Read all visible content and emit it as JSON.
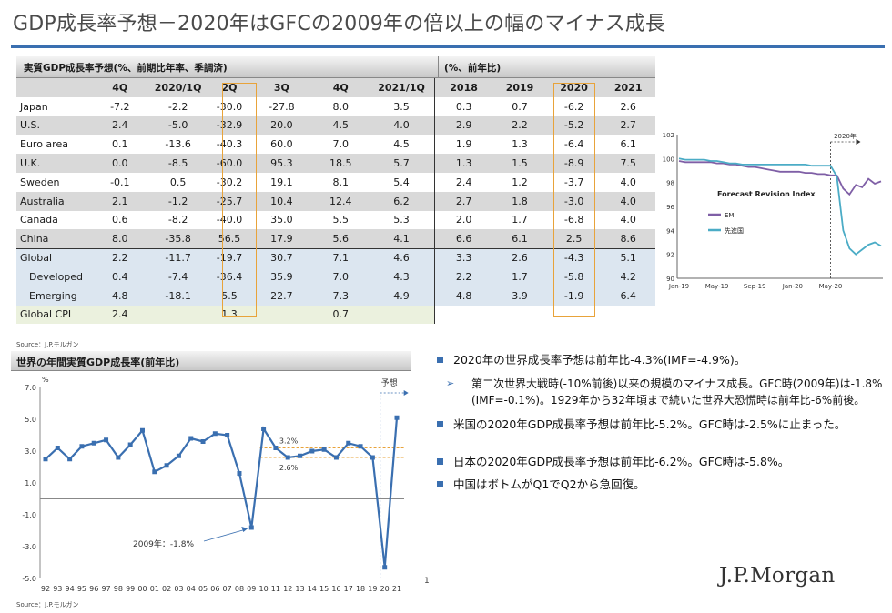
{
  "title": "GDP成長率予想－2020年はGFCの2009年の倍以上の幅のマイナス成長",
  "table": {
    "header_left": "実質GDP成長率予想(%、前期比年率、季調済)",
    "header_right": "(%、前年比)",
    "columns": [
      "4Q",
      "2020/1Q",
      "2Q",
      "3Q",
      "4Q",
      "2021/1Q",
      "2018",
      "2019",
      "2020",
      "2021"
    ],
    "rows": [
      {
        "label": "Japan",
        "values": [
          "-7.2",
          "-2.2",
          "-30.0",
          "-27.8",
          "8.0",
          "3.5",
          "0.3",
          "0.7",
          "-6.2",
          "2.6"
        ]
      },
      {
        "label": "U.S.",
        "values": [
          "2.4",
          "-5.0",
          "-32.9",
          "20.0",
          "4.5",
          "4.0",
          "2.9",
          "2.2",
          "-5.2",
          "2.7"
        ]
      },
      {
        "label": "Euro area",
        "values": [
          "0.1",
          "-13.6",
          "-40.3",
          "60.0",
          "7.0",
          "4.5",
          "1.9",
          "1.3",
          "-6.4",
          "6.1"
        ]
      },
      {
        "label": "U.K.",
        "values": [
          "0.0",
          "-8.5",
          "-60.0",
          "95.3",
          "18.5",
          "5.7",
          "1.3",
          "1.5",
          "-8.9",
          "7.5"
        ]
      },
      {
        "label": "Sweden",
        "values": [
          "-0.1",
          "0.5",
          "-30.2",
          "19.1",
          "8.1",
          "5.4",
          "2.4",
          "1.2",
          "-3.7",
          "4.0"
        ]
      },
      {
        "label": "Australia",
        "values": [
          "2.1",
          "-1.2",
          "-25.7",
          "10.4",
          "12.4",
          "6.2",
          "2.7",
          "1.8",
          "-3.0",
          "4.0"
        ]
      },
      {
        "label": "Canada",
        "values": [
          "0.6",
          "-8.2",
          "-40.0",
          "35.0",
          "5.5",
          "5.3",
          "2.0",
          "1.7",
          "-6.8",
          "4.0"
        ]
      },
      {
        "label": "China",
        "values": [
          "8.0",
          "-35.8",
          "56.5",
          "17.9",
          "5.6",
          "4.1",
          "6.6",
          "6.1",
          "2.5",
          "8.6"
        ]
      },
      {
        "label": "Global",
        "values": [
          "2.2",
          "-11.7",
          "-19.7",
          "30.7",
          "7.1",
          "4.6",
          "3.3",
          "2.6",
          "-4.3",
          "5.1"
        ]
      },
      {
        "label": "Developed",
        "values": [
          "0.4",
          "-7.4",
          "-36.4",
          "35.9",
          "7.0",
          "4.3",
          "2.2",
          "1.7",
          "-5.8",
          "4.2"
        ]
      },
      {
        "label": "Emerging",
        "values": [
          "4.8",
          "-18.1",
          "5.5",
          "22.7",
          "7.3",
          "4.9",
          "4.8",
          "3.9",
          "-1.9",
          "6.4"
        ]
      },
      {
        "label": "Global CPI",
        "values": [
          "2.4",
          "",
          "1.3",
          "",
          "0.7",
          "",
          "",
          "",
          "",
          ""
        ]
      }
    ],
    "source": "Source：J.P.モルガン"
  },
  "chart_data": [
    {
      "type": "line",
      "title": "Forecast Revision Index",
      "annotation": "2020年",
      "x_ticks": [
        "Jan-19",
        "May-19",
        "Sep-19",
        "Jan-20",
        "May-20"
      ],
      "ylim": [
        90,
        102
      ],
      "y_ticks": [
        90,
        92,
        94,
        96,
        98,
        100,
        102
      ],
      "grid": false,
      "legend": "left",
      "series": [
        {
          "name": "EM",
          "color": "#7f5fa6",
          "values": [
            99.8,
            99.7,
            99.7,
            99.7,
            99.7,
            99.7,
            99.6,
            99.6,
            99.5,
            99.5,
            99.4,
            99.3,
            99.3,
            99.2,
            99.1,
            99.0,
            98.9,
            98.9,
            98.9,
            98.9,
            98.8,
            98.8,
            98.7,
            98.7,
            98.6,
            98.6,
            97.5,
            97.0,
            97.8,
            97.6,
            98.3,
            97.9,
            98.1
          ]
        },
        {
          "name": "先進国",
          "color": "#4bacc6",
          "values": [
            100.0,
            99.9,
            99.9,
            99.9,
            99.9,
            99.8,
            99.8,
            99.7,
            99.6,
            99.6,
            99.5,
            99.5,
            99.5,
            99.5,
            99.5,
            99.5,
            99.5,
            99.5,
            99.5,
            99.5,
            99.5,
            99.4,
            99.4,
            99.4,
            99.4,
            98.5,
            94.0,
            92.5,
            92.0,
            92.4,
            92.8,
            93.0,
            92.7
          ]
        }
      ]
    },
    {
      "type": "line",
      "title": "世界の年間実質GDP成長率(前年比)",
      "ylabel": "%",
      "categories": [
        "92",
        "93",
        "94",
        "95",
        "96",
        "97",
        "98",
        "99",
        "00",
        "01",
        "02",
        "03",
        "04",
        "05",
        "06",
        "07",
        "08",
        "09",
        "10",
        "11",
        "12",
        "13",
        "14",
        "15",
        "16",
        "17",
        "18",
        "19",
        "20",
        "21"
      ],
      "values": [
        2.5,
        3.2,
        2.5,
        3.3,
        3.5,
        3.7,
        2.6,
        3.4,
        4.3,
        1.7,
        2.1,
        2.7,
        3.8,
        3.6,
        4.1,
        4.0,
        1.6,
        -1.8,
        4.4,
        3.2,
        2.6,
        2.7,
        3.0,
        3.1,
        2.6,
        3.5,
        3.3,
        2.6,
        -4.3,
        5.1
      ],
      "ylim": [
        -5.0,
        7.0
      ],
      "y_ticks": [
        "-5.0",
        "-3.0",
        "-1.0",
        "1.0",
        "3.0",
        "5.0",
        "7.0"
      ],
      "reference_lines": [
        {
          "label": "3.2%",
          "value": 3.2
        },
        {
          "label": "2.6%",
          "value": 2.6
        }
      ],
      "annotation": "2009年：-1.8%",
      "forecast_label": "予想",
      "color": "#3a6fb0"
    }
  ],
  "chart2_header": "世界の年間実質GDP成長率(前年比)",
  "chart2_source": "Source：J.P.モルガン",
  "page_number": "1",
  "bullets": {
    "b1": "2020年の世界成長率予想は前年比-4.3%(IMF=-4.9%)。",
    "b1_sub": "第二次世界大戦時(-10%前後)以来の規模のマイナス成長。GFC時(2009年)は-1.8%(IMF=-0.1%)。1929年から32年頃まで続いた世界大恐慌時は前年比-6%前後。",
    "b2": "米国の2020年GDP成長率予想は前年比-5.2%。GFC時は-2.5%に止まった。",
    "b3": "日本の2020年GDP成長率予想は前年比-6.2%。GFC時は-5.8%。",
    "b4": "中国はボトムがQ1でQ2から急回復。"
  },
  "logo": "J.P.Morgan",
  "colors": {
    "accent": "#3a6fb0",
    "highlight": "#e8a33a"
  }
}
